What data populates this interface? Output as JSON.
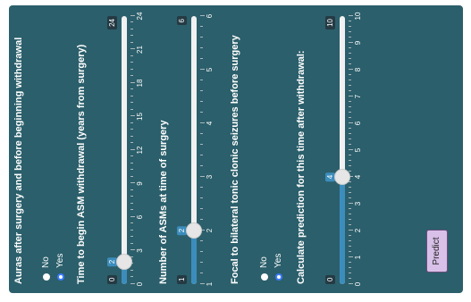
{
  "form": {
    "auras": {
      "label": "Auras after surgery and before beginning withdrawal",
      "options": [
        "No",
        "Yes"
      ],
      "selected": "Yes"
    },
    "asm_time": {
      "label": "Time to begin ASM withdrawal (years from surgery)",
      "min": 0,
      "max": 24,
      "value": 2,
      "min_label": "0",
      "max_label": "24",
      "value_label": "2",
      "ticks": [
        "0",
        "3",
        "6",
        "9",
        "12",
        "15",
        "18",
        "21",
        "24"
      ]
    },
    "num_asms": {
      "label": "Number of ASMs at time of surgery",
      "min": 1,
      "max": 6,
      "value": 2,
      "min_label": "1",
      "max_label": "6",
      "value_label": "2",
      "ticks": [
        "1",
        "2",
        "3",
        "4",
        "5",
        "6"
      ]
    },
    "focal": {
      "label": "Focal to bilateral tonic clonic seizures before surgery",
      "options": [
        "No",
        "Yes"
      ],
      "selected": "Yes"
    },
    "pred_time": {
      "label": "Calculate prediction for this time after withdrawal:",
      "min": 0,
      "max": 10,
      "value": 4,
      "min_label": "0",
      "max_label": "10",
      "value_label": "4",
      "ticks": [
        "0",
        "1",
        "2",
        "3",
        "4",
        "5",
        "6",
        "7",
        "8",
        "9",
        "10"
      ]
    },
    "predict_label": "Predict"
  }
}
